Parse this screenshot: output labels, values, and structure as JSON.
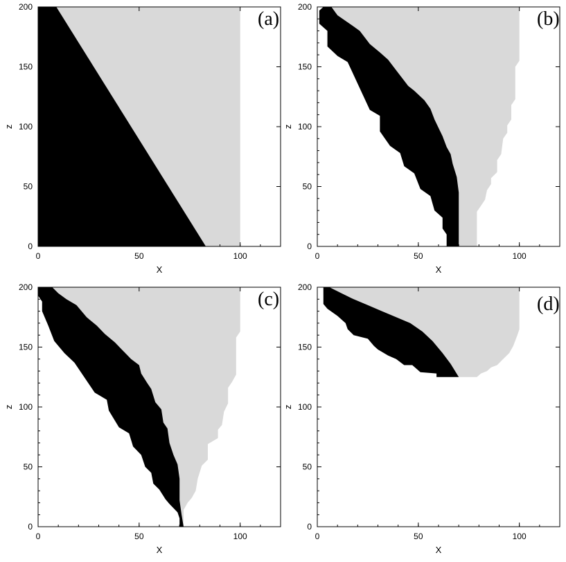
{
  "chart_data": [
    {
      "panel": "(a)",
      "type": "area",
      "xlabel": "X",
      "ylabel": "z",
      "xlim": [
        0,
        120
      ],
      "ylim": [
        0,
        200
      ],
      "xticks": [
        "0",
        "50",
        "100"
      ],
      "yticks": [
        "0",
        "50",
        "100",
        "150",
        "200"
      ],
      "colors": {
        "light_region": "#d9d9d9",
        "dark_region": "#000000"
      },
      "light_region": [
        [
          0,
          200
        ],
        [
          100,
          200
        ],
        [
          100,
          0
        ],
        [
          0,
          0
        ]
      ],
      "dark_region": [
        [
          0,
          200
        ],
        [
          9,
          200
        ],
        [
          83,
          0
        ],
        [
          0,
          0
        ]
      ]
    },
    {
      "panel": "(b)",
      "type": "area",
      "xlabel": "X",
      "ylabel": "z",
      "xlim": [
        0,
        120
      ],
      "ylim": [
        0,
        200
      ],
      "xticks": [
        "0",
        "50",
        "100"
      ],
      "yticks": [
        "0",
        "50",
        "100",
        "150",
        "200"
      ],
      "colors": {
        "light_region": "#d9d9d9",
        "dark_region": "#000000"
      },
      "light_region": [
        [
          3,
          200
        ],
        [
          100,
          200
        ],
        [
          100,
          155
        ],
        [
          98,
          150
        ],
        [
          98,
          123
        ],
        [
          96,
          118
        ],
        [
          96,
          106
        ],
        [
          94,
          101
        ],
        [
          94,
          95
        ],
        [
          92,
          90
        ],
        [
          91,
          77
        ],
        [
          89,
          72
        ],
        [
          89,
          62
        ],
        [
          86,
          57
        ],
        [
          86,
          52
        ],
        [
          84,
          47
        ],
        [
          83,
          39
        ],
        [
          81,
          34
        ],
        [
          79,
          29
        ],
        [
          79,
          0
        ],
        [
          64,
          0
        ],
        [
          64,
          10
        ],
        [
          62,
          15
        ],
        [
          62,
          24
        ],
        [
          58,
          30
        ],
        [
          56,
          42
        ],
        [
          51,
          48
        ],
        [
          48,
          61
        ],
        [
          43,
          67
        ],
        [
          41,
          78
        ],
        [
          36,
          84
        ],
        [
          31,
          96
        ],
        [
          31,
          109
        ],
        [
          26,
          114
        ],
        [
          15,
          154
        ],
        [
          10,
          159
        ],
        [
          5,
          167
        ],
        [
          5,
          180
        ],
        [
          1,
          186
        ],
        [
          1,
          197
        ],
        [
          3,
          200
        ]
      ],
      "dark_region": [
        [
          3,
          200
        ],
        [
          7,
          200
        ],
        [
          10,
          193
        ],
        [
          16,
          186
        ],
        [
          21,
          180
        ],
        [
          26,
          169
        ],
        [
          31,
          162
        ],
        [
          35,
          156
        ],
        [
          40,
          145
        ],
        [
          45,
          134
        ],
        [
          48,
          130
        ],
        [
          53,
          122
        ],
        [
          56,
          115
        ],
        [
          58,
          106
        ],
        [
          60,
          99
        ],
        [
          62,
          92
        ],
        [
          64,
          83
        ],
        [
          66,
          77
        ],
        [
          67,
          69
        ],
        [
          69,
          58
        ],
        [
          70,
          45
        ],
        [
          70,
          37
        ],
        [
          70,
          27
        ],
        [
          70,
          17
        ],
        [
          70,
          0
        ],
        [
          64,
          0
        ],
        [
          64,
          10
        ],
        [
          62,
          15
        ],
        [
          62,
          24
        ],
        [
          58,
          30
        ],
        [
          56,
          42
        ],
        [
          51,
          48
        ],
        [
          48,
          61
        ],
        [
          43,
          67
        ],
        [
          41,
          78
        ],
        [
          36,
          84
        ],
        [
          31,
          96
        ],
        [
          31,
          109
        ],
        [
          26,
          114
        ],
        [
          15,
          154
        ],
        [
          10,
          159
        ],
        [
          5,
          167
        ],
        [
          5,
          180
        ],
        [
          1,
          186
        ],
        [
          1,
          197
        ],
        [
          3,
          200
        ]
      ]
    },
    {
      "panel": "(c)",
      "type": "area",
      "xlabel": "X",
      "ylabel": "z",
      "xlim": [
        0,
        120
      ],
      "ylim": [
        0,
        200
      ],
      "xticks": [
        "0",
        "50",
        "100"
      ],
      "yticks": [
        "0",
        "50",
        "100",
        "150",
        "200"
      ],
      "colors": {
        "light_region": "#d9d9d9",
        "dark_region": "#000000"
      },
      "light_region": [
        [
          3,
          200
        ],
        [
          100,
          200
        ],
        [
          100,
          163
        ],
        [
          98,
          158
        ],
        [
          98,
          127
        ],
        [
          96,
          121
        ],
        [
          94,
          116
        ],
        [
          94,
          103
        ],
        [
          92,
          96
        ],
        [
          91,
          85
        ],
        [
          89,
          81
        ],
        [
          89,
          74
        ],
        [
          84,
          69
        ],
        [
          84,
          56
        ],
        [
          81,
          51
        ],
        [
          79,
          40
        ],
        [
          78,
          30
        ],
        [
          76,
          24
        ],
        [
          74,
          20
        ],
        [
          72,
          14
        ],
        [
          72,
          0
        ],
        [
          70,
          0
        ],
        [
          70,
          7
        ],
        [
          69,
          12
        ],
        [
          65,
          19
        ],
        [
          63,
          23
        ],
        [
          60,
          31
        ],
        [
          57,
          36
        ],
        [
          56,
          45
        ],
        [
          53,
          50
        ],
        [
          51,
          60
        ],
        [
          47,
          67
        ],
        [
          45,
          78
        ],
        [
          40,
          83
        ],
        [
          35,
          97
        ],
        [
          34,
          106
        ],
        [
          28,
          112
        ],
        [
          18,
          137
        ],
        [
          13,
          145
        ],
        [
          8,
          155
        ],
        [
          5,
          168
        ],
        [
          2,
          180
        ],
        [
          2,
          188
        ],
        [
          0,
          193
        ],
        [
          0,
          200
        ],
        [
          3,
          200
        ]
      ],
      "dark_region": [
        [
          3,
          200
        ],
        [
          7,
          200
        ],
        [
          10,
          195
        ],
        [
          14,
          190
        ],
        [
          19,
          185
        ],
        [
          24,
          175
        ],
        [
          29,
          168
        ],
        [
          33,
          161
        ],
        [
          38,
          154
        ],
        [
          42,
          147
        ],
        [
          46,
          140
        ],
        [
          50,
          135
        ],
        [
          51,
          128
        ],
        [
          54,
          120
        ],
        [
          56,
          115
        ],
        [
          58,
          104
        ],
        [
          61,
          98
        ],
        [
          62,
          87
        ],
        [
          64,
          82
        ],
        [
          65,
          70
        ],
        [
          67,
          60
        ],
        [
          69,
          52
        ],
        [
          70,
          40
        ],
        [
          70,
          32
        ],
        [
          70,
          22
        ],
        [
          71,
          10
        ],
        [
          72,
          0
        ],
        [
          70,
          0
        ],
        [
          70,
          7
        ],
        [
          69,
          12
        ],
        [
          65,
          19
        ],
        [
          63,
          23
        ],
        [
          60,
          31
        ],
        [
          57,
          36
        ],
        [
          56,
          45
        ],
        [
          53,
          50
        ],
        [
          51,
          60
        ],
        [
          47,
          67
        ],
        [
          45,
          78
        ],
        [
          40,
          83
        ],
        [
          35,
          97
        ],
        [
          34,
          106
        ],
        [
          28,
          112
        ],
        [
          18,
          137
        ],
        [
          13,
          145
        ],
        [
          8,
          155
        ],
        [
          5,
          168
        ],
        [
          2,
          180
        ],
        [
          2,
          188
        ],
        [
          0,
          193
        ],
        [
          0,
          200
        ],
        [
          3,
          200
        ]
      ]
    },
    {
      "panel": "(d)",
      "type": "area",
      "xlabel": "X",
      "ylabel": "z",
      "xlim": [
        0,
        120
      ],
      "ylim": [
        0,
        200
      ],
      "xticks": [
        "0",
        "50",
        "100"
      ],
      "yticks": [
        "0",
        "50",
        "100",
        "150",
        "200"
      ],
      "colors": {
        "light_region": "#d9d9d9",
        "dark_region": "#000000"
      },
      "light_region": [
        [
          3,
          200
        ],
        [
          100,
          200
        ],
        [
          100,
          165
        ],
        [
          99,
          160
        ],
        [
          97,
          151
        ],
        [
          95,
          145
        ],
        [
          92,
          140
        ],
        [
          89,
          135
        ],
        [
          86,
          133
        ],
        [
          84,
          130
        ],
        [
          81,
          128
        ],
        [
          79,
          125
        ],
        [
          70,
          125
        ],
        [
          59,
          128
        ],
        [
          51,
          135
        ],
        [
          47,
          135
        ],
        [
          43,
          140
        ],
        [
          39,
          143
        ],
        [
          35,
          148
        ],
        [
          30,
          151
        ],
        [
          28,
          157
        ],
        [
          25,
          160
        ],
        [
          18,
          165
        ],
        [
          15,
          170
        ],
        [
          14,
          176
        ],
        [
          10,
          182
        ],
        [
          5,
          186
        ],
        [
          3,
          194
        ],
        [
          3,
          200
        ]
      ],
      "dark_region": [
        [
          3,
          200
        ],
        [
          6,
          200
        ],
        [
          12,
          195
        ],
        [
          18,
          190
        ],
        [
          25,
          185
        ],
        [
          32,
          180
        ],
        [
          39,
          175
        ],
        [
          46,
          170
        ],
        [
          52,
          163
        ],
        [
          57,
          155
        ],
        [
          62,
          145
        ],
        [
          66,
          136
        ],
        [
          70,
          125
        ],
        [
          59,
          125
        ],
        [
          59,
          128
        ],
        [
          51,
          129
        ],
        [
          47,
          135
        ],
        [
          43,
          135
        ],
        [
          39,
          140
        ],
        [
          35,
          143
        ],
        [
          30,
          148
        ],
        [
          28,
          151
        ],
        [
          25,
          157
        ],
        [
          18,
          160
        ],
        [
          15,
          165
        ],
        [
          14,
          170
        ],
        [
          10,
          176
        ],
        [
          5,
          182
        ],
        [
          3,
          186
        ],
        [
          3,
          200
        ]
      ]
    }
  ]
}
